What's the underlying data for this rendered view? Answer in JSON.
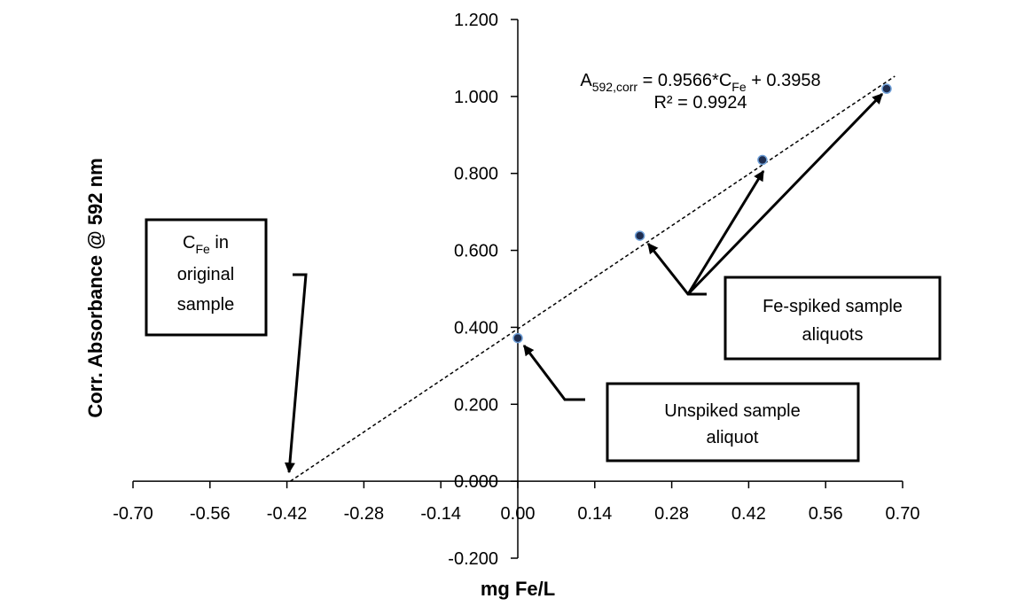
{
  "chart_data": {
    "type": "scatter",
    "x_label": "mg Fe/L",
    "y_label": "Corr. Absorbance @ 592 nm",
    "x": [
      0,
      0.222,
      0.445,
      0.671
    ],
    "values": [
      0.372,
      0.638,
      0.835,
      1.02
    ],
    "color": "#1f2d4f",
    "xlim": [
      -0.7,
      0.7
    ],
    "xticks": [
      {
        "value": -0.7,
        "label": "-0.70"
      },
      -0.56,
      -0.42,
      -0.28,
      -0.14,
      {
        "value": 0,
        "label": "0.00"
      },
      0.14,
      0.28,
      0.42,
      0.56,
      {
        "value": 0.7,
        "label": "0.70"
      }
    ],
    "ylim": [
      -0.2,
      1.2
    ],
    "yticks": [
      {
        "value": -0.2,
        "label": "-0.200"
      },
      {
        "value": 0,
        "label": "0.000"
      },
      {
        "value": 0.2,
        "label": "0.200"
      },
      {
        "value": 0.4,
        "label": "0.400"
      },
      {
        "value": 0.6,
        "label": "0.600"
      },
      {
        "value": 0.8,
        "label": "0.800"
      },
      {
        "value": 1,
        "label": "1.000"
      },
      {
        "value": 1.2,
        "label": "1.200"
      }
    ],
    "equation": {
      "lhs": "A",
      "lhs_sub": "592,corr",
      "mid": " = 0.9566*C",
      "mid_sub": "Fe",
      "rhs": " + 0.3958"
    },
    "r_squared": "R² = 0.9924",
    "annotations": [
      {
        "c": "C",
        "sub": "Fe",
        "after": " in",
        "line2": "original",
        "line3": "sample"
      },
      {
        "line1": "Unspiked sample",
        "line2": "aliquot"
      },
      {
        "line1": "Fe-spiked sample",
        "line2": "aliquots"
      }
    ]
  }
}
